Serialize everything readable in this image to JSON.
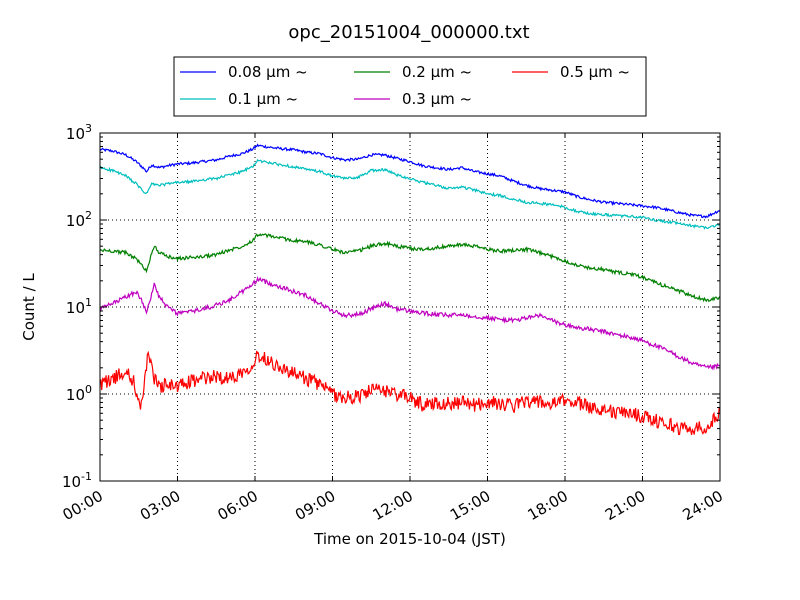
{
  "chart_data": {
    "type": "line",
    "title": "opc_20151004_000000.txt",
    "xlabel": "Time on 2015-10-04 (JST)",
    "ylabel": "Count / L",
    "x_unit": "hours",
    "xlim": [
      0,
      24
    ],
    "ylim": [
      0.1,
      1000
    ],
    "yscale": "log",
    "x_ticks": [
      0,
      3,
      6,
      9,
      12,
      15,
      18,
      21,
      24
    ],
    "x_tick_labels": [
      "00:00",
      "03:00",
      "06:00",
      "09:00",
      "12:00",
      "15:00",
      "18:00",
      "21:00",
      "24:00"
    ],
    "y_ticks": [
      0.1,
      1,
      10,
      100,
      1000
    ],
    "y_tick_bases": [
      "10",
      "10",
      "10",
      "10",
      "10"
    ],
    "y_tick_exponents": [
      "-1",
      "0",
      "1",
      "2",
      "3"
    ],
    "grid": true,
    "legend_placement": "top-center",
    "series": [
      {
        "name": "0.08 μm ~",
        "color": "#0000ff",
        "points": [
          [
            0,
            650
          ],
          [
            0.5,
            620
          ],
          [
            1,
            560
          ],
          [
            1.4,
            470
          ],
          [
            1.7,
            390
          ],
          [
            1.8,
            360
          ],
          [
            2,
            430
          ],
          [
            2.3,
            400
          ],
          [
            2.6,
            420
          ],
          [
            3,
            440
          ],
          [
            3.5,
            450
          ],
          [
            4,
            470
          ],
          [
            4.5,
            490
          ],
          [
            5,
            540
          ],
          [
            5.5,
            580
          ],
          [
            5.9,
            650
          ],
          [
            6.1,
            720
          ],
          [
            6.5,
            690
          ],
          [
            7,
            660
          ],
          [
            7.5,
            640
          ],
          [
            8,
            600
          ],
          [
            8.5,
            580
          ],
          [
            9,
            520
          ],
          [
            9.5,
            490
          ],
          [
            10,
            500
          ],
          [
            10.5,
            560
          ],
          [
            11,
            560
          ],
          [
            11.5,
            510
          ],
          [
            12,
            470
          ],
          [
            12.5,
            420
          ],
          [
            13,
            400
          ],
          [
            13.5,
            380
          ],
          [
            14,
            400
          ],
          [
            14.5,
            360
          ],
          [
            15,
            340
          ],
          [
            15.5,
            320
          ],
          [
            16,
            280
          ],
          [
            16.5,
            250
          ],
          [
            17,
            230
          ],
          [
            17.5,
            220
          ],
          [
            18,
            210
          ],
          [
            18.5,
            185
          ],
          [
            19,
            170
          ],
          [
            19.5,
            160
          ],
          [
            20,
            155
          ],
          [
            20.5,
            150
          ],
          [
            21,
            145
          ],
          [
            21.5,
            140
          ],
          [
            22,
            130
          ],
          [
            22.5,
            120
          ],
          [
            23,
            112
          ],
          [
            23.5,
            110
          ],
          [
            24,
            130
          ]
        ]
      },
      {
        "name": "0.1 μm ~",
        "color": "#00bfbf",
        "points": [
          [
            0,
            400
          ],
          [
            0.5,
            370
          ],
          [
            1,
            320
          ],
          [
            1.4,
            260
          ],
          [
            1.7,
            210
          ],
          [
            1.8,
            200
          ],
          [
            2,
            260
          ],
          [
            2.3,
            250
          ],
          [
            2.6,
            260
          ],
          [
            3,
            270
          ],
          [
            3.5,
            275
          ],
          [
            4,
            290
          ],
          [
            4.5,
            300
          ],
          [
            5,
            330
          ],
          [
            5.5,
            360
          ],
          [
            5.9,
            410
          ],
          [
            6.1,
            480
          ],
          [
            6.5,
            460
          ],
          [
            7,
            430
          ],
          [
            7.5,
            410
          ],
          [
            8,
            380
          ],
          [
            8.5,
            360
          ],
          [
            9,
            320
          ],
          [
            9.5,
            300
          ],
          [
            10,
            310
          ],
          [
            10.5,
            370
          ],
          [
            11,
            380
          ],
          [
            11.5,
            330
          ],
          [
            12,
            300
          ],
          [
            12.5,
            270
          ],
          [
            13,
            250
          ],
          [
            13.5,
            230
          ],
          [
            14,
            240
          ],
          [
            14.5,
            220
          ],
          [
            15,
            200
          ],
          [
            15.5,
            190
          ],
          [
            16,
            175
          ],
          [
            16.5,
            160
          ],
          [
            17,
            155
          ],
          [
            17.5,
            150
          ],
          [
            18,
            140
          ],
          [
            18.5,
            125
          ],
          [
            19,
            118
          ],
          [
            19.5,
            115
          ],
          [
            20,
            112
          ],
          [
            20.5,
            110
          ],
          [
            21,
            107
          ],
          [
            21.5,
            100
          ],
          [
            22,
            95
          ],
          [
            22.5,
            90
          ],
          [
            23,
            85
          ],
          [
            23.5,
            82
          ],
          [
            24,
            88
          ]
        ]
      },
      {
        "name": "0.2 μm ~",
        "color": "#008000",
        "points": [
          [
            0,
            45
          ],
          [
            0.5,
            44
          ],
          [
            1,
            42
          ],
          [
            1.4,
            36
          ],
          [
            1.7,
            28
          ],
          [
            1.8,
            26
          ],
          [
            2,
            42
          ],
          [
            2.1,
            50
          ],
          [
            2.3,
            42
          ],
          [
            2.6,
            38
          ],
          [
            3,
            36
          ],
          [
            3.5,
            37
          ],
          [
            4,
            38
          ],
          [
            4.5,
            40
          ],
          [
            5,
            45
          ],
          [
            5.5,
            50
          ],
          [
            5.9,
            58
          ],
          [
            6.1,
            68
          ],
          [
            6.5,
            66
          ],
          [
            7,
            62
          ],
          [
            7.5,
            58
          ],
          [
            8,
            56
          ],
          [
            8.5,
            52
          ],
          [
            9,
            46
          ],
          [
            9.5,
            42
          ],
          [
            10,
            44
          ],
          [
            10.5,
            50
          ],
          [
            11,
            54
          ],
          [
            11.5,
            50
          ],
          [
            12,
            47
          ],
          [
            12.5,
            46
          ],
          [
            13,
            48
          ],
          [
            13.5,
            50
          ],
          [
            14,
            52
          ],
          [
            14.5,
            50
          ],
          [
            15,
            46
          ],
          [
            15.5,
            44
          ],
          [
            16,
            45
          ],
          [
            16.5,
            46
          ],
          [
            17,
            42
          ],
          [
            17.5,
            38
          ],
          [
            18,
            34
          ],
          [
            18.5,
            30
          ],
          [
            19,
            28
          ],
          [
            19.5,
            27
          ],
          [
            20,
            25
          ],
          [
            20.5,
            24
          ],
          [
            21,
            22
          ],
          [
            21.5,
            19
          ],
          [
            22,
            17
          ],
          [
            22.5,
            15
          ],
          [
            23,
            13
          ],
          [
            23.5,
            12
          ],
          [
            24,
            13
          ]
        ]
      },
      {
        "name": "0.3 μm ~",
        "color": "#bf00bf",
        "points": [
          [
            0,
            9.5
          ],
          [
            0.5,
            11
          ],
          [
            1,
            13
          ],
          [
            1.4,
            15
          ],
          [
            1.6,
            12
          ],
          [
            1.8,
            9
          ],
          [
            2,
            14
          ],
          [
            2.1,
            18
          ],
          [
            2.3,
            13
          ],
          [
            2.6,
            10
          ],
          [
            3,
            8.5
          ],
          [
            3.5,
            8.8
          ],
          [
            4,
            9.5
          ],
          [
            4.5,
            10.5
          ],
          [
            5,
            12
          ],
          [
            5.5,
            15
          ],
          [
            5.9,
            18
          ],
          [
            6.1,
            21
          ],
          [
            6.5,
            19
          ],
          [
            7,
            17
          ],
          [
            7.5,
            15
          ],
          [
            8,
            13.5
          ],
          [
            8.5,
            11
          ],
          [
            9,
            9
          ],
          [
            9.5,
            8
          ],
          [
            10,
            8.2
          ],
          [
            10.5,
            9.5
          ],
          [
            11,
            11
          ],
          [
            11.5,
            9.5
          ],
          [
            12,
            9
          ],
          [
            12.5,
            8.5
          ],
          [
            13,
            8.2
          ],
          [
            13.5,
            8
          ],
          [
            14,
            8.2
          ],
          [
            14.5,
            7.8
          ],
          [
            15,
            7.5
          ],
          [
            15.5,
            7.2
          ],
          [
            16,
            7
          ],
          [
            16.5,
            7.5
          ],
          [
            17,
            8
          ],
          [
            17.5,
            7
          ],
          [
            18,
            6.2
          ],
          [
            18.5,
            5.8
          ],
          [
            19,
            5.5
          ],
          [
            19.5,
            5.2
          ],
          [
            20,
            4.8
          ],
          [
            20.5,
            4.5
          ],
          [
            21,
            4.1
          ],
          [
            21.5,
            3.6
          ],
          [
            22,
            3.1
          ],
          [
            22.5,
            2.6
          ],
          [
            23,
            2.2
          ],
          [
            23.5,
            2
          ],
          [
            24,
            2.1
          ]
        ]
      },
      {
        "name": "0.5 μm ~",
        "color": "#ff0000",
        "points": [
          [
            0,
            1.3
          ],
          [
            0.5,
            1.5
          ],
          [
            1,
            1.8
          ],
          [
            1.3,
            1.4
          ],
          [
            1.5,
            0.8
          ],
          [
            1.6,
            0.7
          ],
          [
            1.8,
            2.2
          ],
          [
            1.9,
            3
          ],
          [
            2.1,
            1.5
          ],
          [
            2.3,
            1.2
          ],
          [
            2.6,
            1.3
          ],
          [
            3,
            1.2
          ],
          [
            3.5,
            1.4
          ],
          [
            4,
            1.5
          ],
          [
            4.5,
            1.6
          ],
          [
            5,
            1.5
          ],
          [
            5.5,
            1.8
          ],
          [
            5.9,
            2.2
          ],
          [
            6.1,
            2.8
          ],
          [
            6.5,
            2.5
          ],
          [
            7,
            2
          ],
          [
            7.5,
            1.7
          ],
          [
            8,
            1.5
          ],
          [
            8.5,
            1.3
          ],
          [
            9,
            1
          ],
          [
            9.5,
            0.9
          ],
          [
            10,
            0.95
          ],
          [
            10.5,
            1.1
          ],
          [
            11,
            1.1
          ],
          [
            11.5,
            1
          ],
          [
            12,
            0.9
          ],
          [
            12.5,
            0.75
          ],
          [
            13,
            0.8
          ],
          [
            13.5,
            0.78
          ],
          [
            14,
            0.8
          ],
          [
            14.5,
            0.75
          ],
          [
            15,
            0.8
          ],
          [
            15.5,
            0.78
          ],
          [
            16,
            0.72
          ],
          [
            16.5,
            0.85
          ],
          [
            17,
            0.8
          ],
          [
            17.5,
            0.75
          ],
          [
            18,
            0.85
          ],
          [
            18.5,
            0.8
          ],
          [
            19,
            0.7
          ],
          [
            19.5,
            0.68
          ],
          [
            20,
            0.6
          ],
          [
            20.5,
            0.62
          ],
          [
            21,
            0.55
          ],
          [
            21.5,
            0.5
          ],
          [
            22,
            0.45
          ],
          [
            22.5,
            0.4
          ],
          [
            23,
            0.4
          ],
          [
            23.5,
            0.42
          ],
          [
            24,
            0.6
          ]
        ]
      }
    ]
  }
}
